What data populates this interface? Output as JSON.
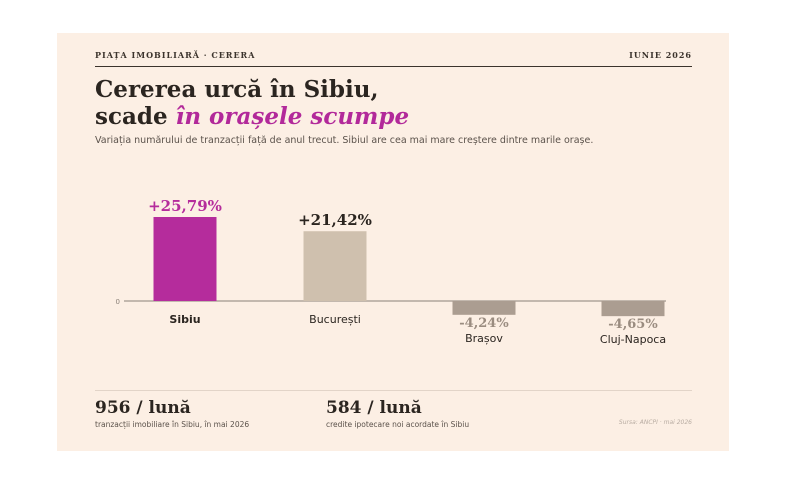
{
  "header": {
    "kicker": "PIAȚA IMOBILIARĂ · CERERA",
    "date": "IUNIE 2026"
  },
  "title": {
    "line1": "Cererea urcă în Sibiu,",
    "line2_plain": "scade ",
    "line2_accent": "în orașele scumpe"
  },
  "subtitle": "Variația numărului de tranzacții față de anul trecut. Sibiul are cea mai mare creștere dintre marile orașe.",
  "colors": {
    "highlight": "#b52c9c",
    "positive": "#cfc0ae",
    "negative": "#ab9d91",
    "axis": "#8a8078"
  },
  "chart_data": {
    "type": "bar",
    "categories": [
      "Sibiu",
      "București",
      "Brașov",
      "Cluj-Napoca"
    ],
    "values": [
      25.79,
      21.42,
      -4.24,
      -4.65
    ],
    "value_labels": [
      "+25,79%",
      "+21,42%",
      "-4,24%",
      "-4,65%"
    ],
    "highlight": "Sibiu",
    "zero_label": "0"
  },
  "stats": [
    {
      "value": "956 / lună",
      "desc": "tranzacții imobiliare în Sibiu, în mai 2026"
    },
    {
      "value": "584 / lună",
      "desc": "credite ipotecare noi acordate în Sibiu"
    }
  ],
  "source": "Sursa: ANCPI · mai 2026"
}
